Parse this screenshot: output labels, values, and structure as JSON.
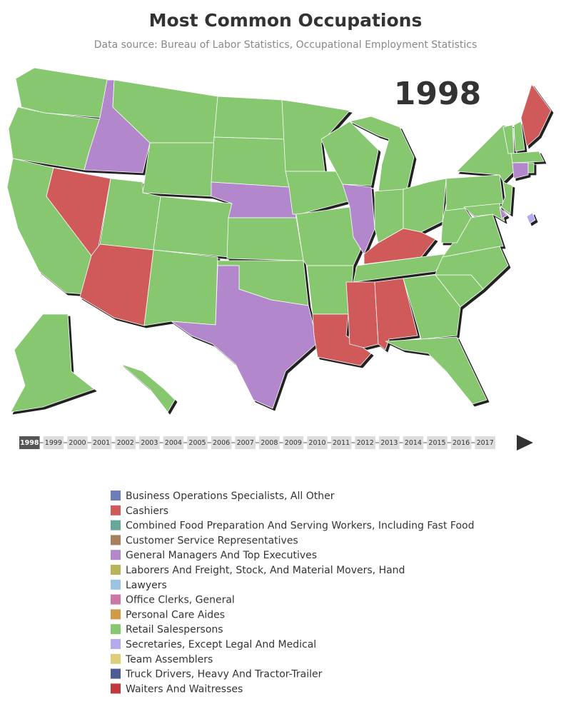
{
  "title": "Most Common Occupations",
  "subtitle": "Data source: Bureau of Labor Statistics, Occupational Employment Statistics",
  "year": "1998",
  "timeline": {
    "years": [
      "1998",
      "1999",
      "2000",
      "2001",
      "2002",
      "2003",
      "2004",
      "2005",
      "2006",
      "2007",
      "2008",
      "2009",
      "2010",
      "2011",
      "2012",
      "2013",
      "2014",
      "2015",
      "2016",
      "2017"
    ],
    "active": 0
  },
  "legend": [
    {
      "label": "Business Operations Specialists, All Other",
      "color": "#6c7db7"
    },
    {
      "label": "Cashiers",
      "color": "#d05a5a"
    },
    {
      "label": "Combined Food Preparation And Serving Workers, Including Fast Food",
      "color": "#67a89b"
    },
    {
      "label": "Customer Service Representatives",
      "color": "#a8815c"
    },
    {
      "label": "General Managers And Top Executives",
      "color": "#b287cb"
    },
    {
      "label": "Laborers And Freight, Stock, And Material Movers, Hand",
      "color": "#b7b557"
    },
    {
      "label": "Lawyers",
      "color": "#9cc3e3"
    },
    {
      "label": "Office Clerks, General",
      "color": "#cc77a6"
    },
    {
      "label": "Personal Care Aides",
      "color": "#d09a48"
    },
    {
      "label": "Retail Salespersons",
      "color": "#86c76f"
    },
    {
      "label": "Secretaries, Except Legal And Medical",
      "color": "#b7a9ee"
    },
    {
      "label": "Team Assemblers",
      "color": "#dccf77"
    },
    {
      "label": "Truck Drivers, Heavy And Tractor-Trailer",
      "color": "#4d5b97"
    },
    {
      "label": "Waiters And Waitresses",
      "color": "#c0393b"
    }
  ],
  "map": {
    "regions": [
      "Retail Salespersons",
      "Retail Salespersons",
      "Retail Salespersons",
      "Cashiers",
      "General Managers And Top Executives",
      "Retail Salespersons",
      "Retail Salespersons",
      "Retail Salespersons",
      "Cashiers",
      "Retail Salespersons",
      "Retail Salespersons",
      "Retail Salespersons",
      "Retail Salespersons",
      "General Managers And Top Executives",
      "Retail Salespersons",
      "Retail Salespersons",
      "General Managers And Top Executives",
      "Retail Salespersons",
      "Retail Salespersons",
      "Retail Salespersons",
      "Retail Salespersons",
      "Cashiers",
      "Retail Salespersons",
      "General Managers And Top Executives",
      "Retail Salespersons",
      "Retail Salespersons",
      "Retail Salespersons",
      "Cashiers",
      "Retail Salespersons",
      "Cashiers",
      "Cashiers",
      "Retail Salespersons",
      "Retail Salespersons",
      "Retail Salespersons",
      "Retail Salespersons",
      "Retail Salespersons",
      "Retail Salespersons",
      "Retail Salespersons",
      "Retail Salespersons",
      "Retail Salespersons",
      "Retail Salespersons",
      "Cashiers",
      "Retail Salespersons",
      "General Managers And Top Executives",
      "Retail Salespersons",
      "Retail Salespersons",
      "Retail Salespersons",
      "General Managers And Top Executives",
      "Secretaries, Except Legal And Medical",
      "Retail Salespersons",
      "Retail Salespersons"
    ]
  }
}
